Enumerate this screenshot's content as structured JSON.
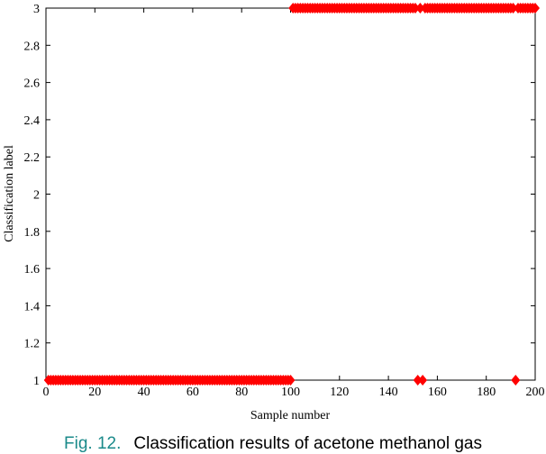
{
  "chart_data": {
    "type": "scatter",
    "x_label": "Sample number",
    "y_label": "Classification label",
    "x": [
      1,
      2,
      3,
      4,
      5,
      6,
      7,
      8,
      9,
      10,
      11,
      12,
      13,
      14,
      15,
      16,
      17,
      18,
      19,
      20,
      21,
      22,
      23,
      24,
      25,
      26,
      27,
      28,
      29,
      30,
      31,
      32,
      33,
      34,
      35,
      36,
      37,
      38,
      39,
      40,
      41,
      42,
      43,
      44,
      45,
      46,
      47,
      48,
      49,
      50,
      51,
      52,
      53,
      54,
      55,
      56,
      57,
      58,
      59,
      60,
      61,
      62,
      63,
      64,
      65,
      66,
      67,
      68,
      69,
      70,
      71,
      72,
      73,
      74,
      75,
      76,
      77,
      78,
      79,
      80,
      81,
      82,
      83,
      84,
      85,
      86,
      87,
      88,
      89,
      90,
      91,
      92,
      93,
      94,
      95,
      96,
      97,
      98,
      99,
      100,
      101,
      102,
      103,
      104,
      105,
      106,
      107,
      108,
      109,
      110,
      111,
      112,
      113,
      114,
      115,
      116,
      117,
      118,
      119,
      120,
      121,
      122,
      123,
      124,
      125,
      126,
      127,
      128,
      129,
      130,
      131,
      132,
      133,
      134,
      135,
      136,
      137,
      138,
      139,
      140,
      141,
      142,
      143,
      144,
      145,
      146,
      147,
      148,
      149,
      150,
      151,
      152,
      153,
      154,
      155,
      156,
      157,
      158,
      159,
      160,
      161,
      162,
      163,
      164,
      165,
      166,
      167,
      168,
      169,
      170,
      171,
      172,
      173,
      174,
      175,
      176,
      177,
      178,
      179,
      180,
      181,
      182,
      183,
      184,
      185,
      186,
      187,
      188,
      189,
      190,
      191,
      192,
      193,
      194,
      195,
      196,
      197,
      198,
      199,
      200
    ],
    "values": [
      1,
      1,
      1,
      1,
      1,
      1,
      1,
      1,
      1,
      1,
      1,
      1,
      1,
      1,
      1,
      1,
      1,
      1,
      1,
      1,
      1,
      1,
      1,
      1,
      1,
      1,
      1,
      1,
      1,
      1,
      1,
      1,
      1,
      1,
      1,
      1,
      1,
      1,
      1,
      1,
      1,
      1,
      1,
      1,
      1,
      1,
      1,
      1,
      1,
      1,
      1,
      1,
      1,
      1,
      1,
      1,
      1,
      1,
      1,
      1,
      1,
      1,
      1,
      1,
      1,
      1,
      1,
      1,
      1,
      1,
      1,
      1,
      1,
      1,
      1,
      1,
      1,
      1,
      1,
      1,
      1,
      1,
      1,
      1,
      1,
      1,
      1,
      1,
      1,
      1,
      1,
      1,
      1,
      1,
      1,
      1,
      1,
      1,
      1,
      1,
      3,
      3,
      3,
      3,
      3,
      3,
      3,
      3,
      3,
      3,
      3,
      3,
      3,
      3,
      3,
      3,
      3,
      3,
      3,
      3,
      3,
      3,
      3,
      3,
      3,
      3,
      3,
      3,
      3,
      3,
      3,
      3,
      3,
      3,
      3,
      3,
      3,
      3,
      3,
      3,
      3,
      3,
      3,
      3,
      3,
      3,
      3,
      3,
      3,
      3,
      3,
      1,
      3,
      1,
      3,
      3,
      3,
      3,
      3,
      3,
      3,
      3,
      3,
      3,
      3,
      3,
      3,
      3,
      3,
      3,
      3,
      3,
      3,
      3,
      3,
      3,
      3,
      3,
      3,
      3,
      3,
      3,
      3,
      3,
      3,
      3,
      3,
      3,
      3,
      3,
      3,
      1,
      3,
      3,
      3,
      3,
      3,
      3,
      3,
      3
    ],
    "color": "#ff0000",
    "xlim": [
      0,
      200
    ],
    "xticks": [
      0,
      20,
      40,
      60,
      80,
      100,
      120,
      140,
      160,
      180,
      200
    ],
    "ylim": [
      1,
      3
    ],
    "yticks": [
      1,
      1.2,
      1.4,
      1.6,
      1.8,
      2,
      2.2,
      2.4,
      2.6,
      2.8,
      3
    ]
  },
  "caption": {
    "label": "Fig. 12.",
    "text": "Classification results of acetone methanol gas"
  }
}
